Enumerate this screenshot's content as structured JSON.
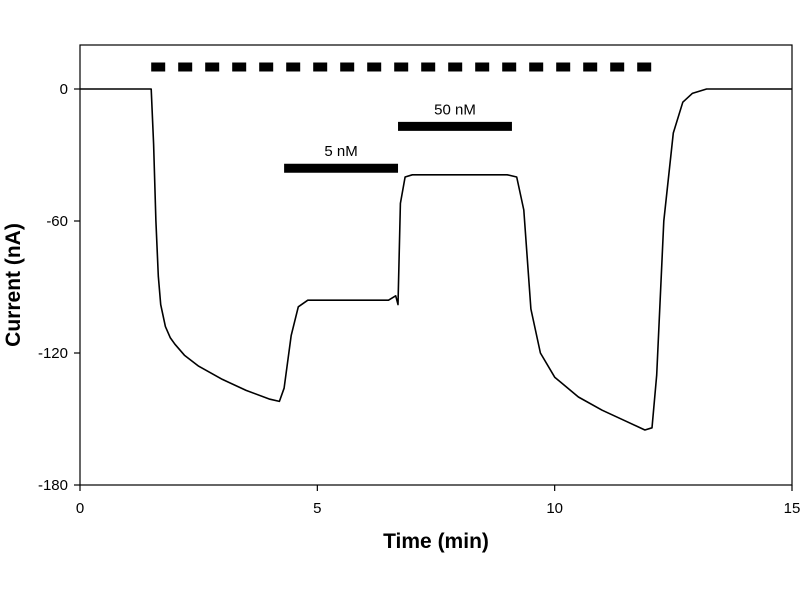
{
  "chart_data": {
    "type": "line",
    "xlabel": "Time (min)",
    "ylabel": "Current (nA)",
    "xlim": [
      0,
      15
    ],
    "ylim": [
      -180,
      20
    ],
    "x_ticks": [
      0,
      5,
      10,
      15
    ],
    "y_ticks": [
      0,
      -60,
      -120,
      -180
    ],
    "x_tick_labels": [
      "0",
      "5",
      "10",
      "15"
    ],
    "y_tick_labels": [
      "0",
      "-60",
      "-120",
      "-180"
    ],
    "grid": false,
    "series": [
      {
        "color": "#000000",
        "x": [
          0,
          1.5,
          1.55,
          1.6,
          1.65,
          1.7,
          1.8,
          1.9,
          2.0,
          2.2,
          2.5,
          3.0,
          3.5,
          4.0,
          4.2,
          4.3,
          4.45,
          4.6,
          4.8,
          5.0,
          5.5,
          6.0,
          6.5,
          6.65,
          6.7,
          6.75,
          6.85,
          7.0,
          7.5,
          8.0,
          8.5,
          9.0,
          9.2,
          9.35,
          9.5,
          9.7,
          10.0,
          10.5,
          11.0,
          11.5,
          11.9,
          12.05,
          12.15,
          12.3,
          12.5,
          12.7,
          12.9,
          13.2,
          13.5,
          15.0
        ],
        "y": [
          0,
          0,
          -25,
          -60,
          -85,
          -98,
          -108,
          -113,
          -116,
          -121,
          -126,
          -132,
          -137,
          -141,
          -142,
          -136,
          -112,
          -99,
          -96,
          -96,
          -96,
          -96,
          -96,
          -94,
          -98,
          -52,
          -40,
          -39,
          -39,
          -39,
          -39,
          -39,
          -40,
          -55,
          -100,
          -120,
          -131,
          -140,
          -146,
          -151,
          -155,
          -154,
          -130,
          -60,
          -20,
          -6,
          -2,
          0,
          0,
          0
        ]
      }
    ],
    "stimulus_bars": [
      {
        "label": "",
        "x_start": 1.5,
        "x_end": 12.1,
        "y": 10,
        "style": "dashed"
      },
      {
        "label": "5 nM",
        "x_start": 4.3,
        "x_end": 6.7,
        "y": -36,
        "style": "solid"
      },
      {
        "label": "50 nM",
        "x_start": 6.7,
        "x_end": 9.1,
        "y": -17,
        "style": "solid"
      }
    ]
  }
}
